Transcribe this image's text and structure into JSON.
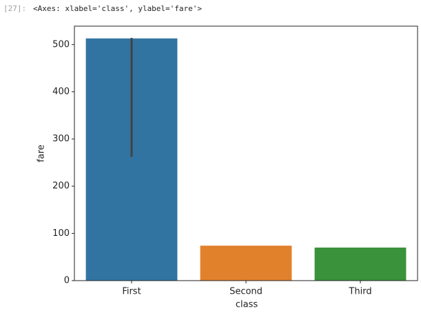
{
  "notebook": {
    "prompt": "[27]:",
    "output": "<Axes: xlabel='class', ylabel='fare'>"
  },
  "chart_data": {
    "type": "bar",
    "xlabel": "class",
    "ylabel": "fare",
    "categories": [
      "First",
      "Second",
      "Third"
    ],
    "values": [
      513,
      74,
      70
    ],
    "colors": [
      "#3274a1",
      "#e1812c",
      "#3a923a"
    ],
    "ci_low": [
      262,
      null,
      null
    ],
    "ci_high": [
      514,
      null,
      null
    ],
    "errorbar_color": "#424242",
    "ylim": [
      0,
      539
    ],
    "yticks": [
      0,
      100,
      200,
      300,
      400,
      500
    ],
    "grid": false
  }
}
